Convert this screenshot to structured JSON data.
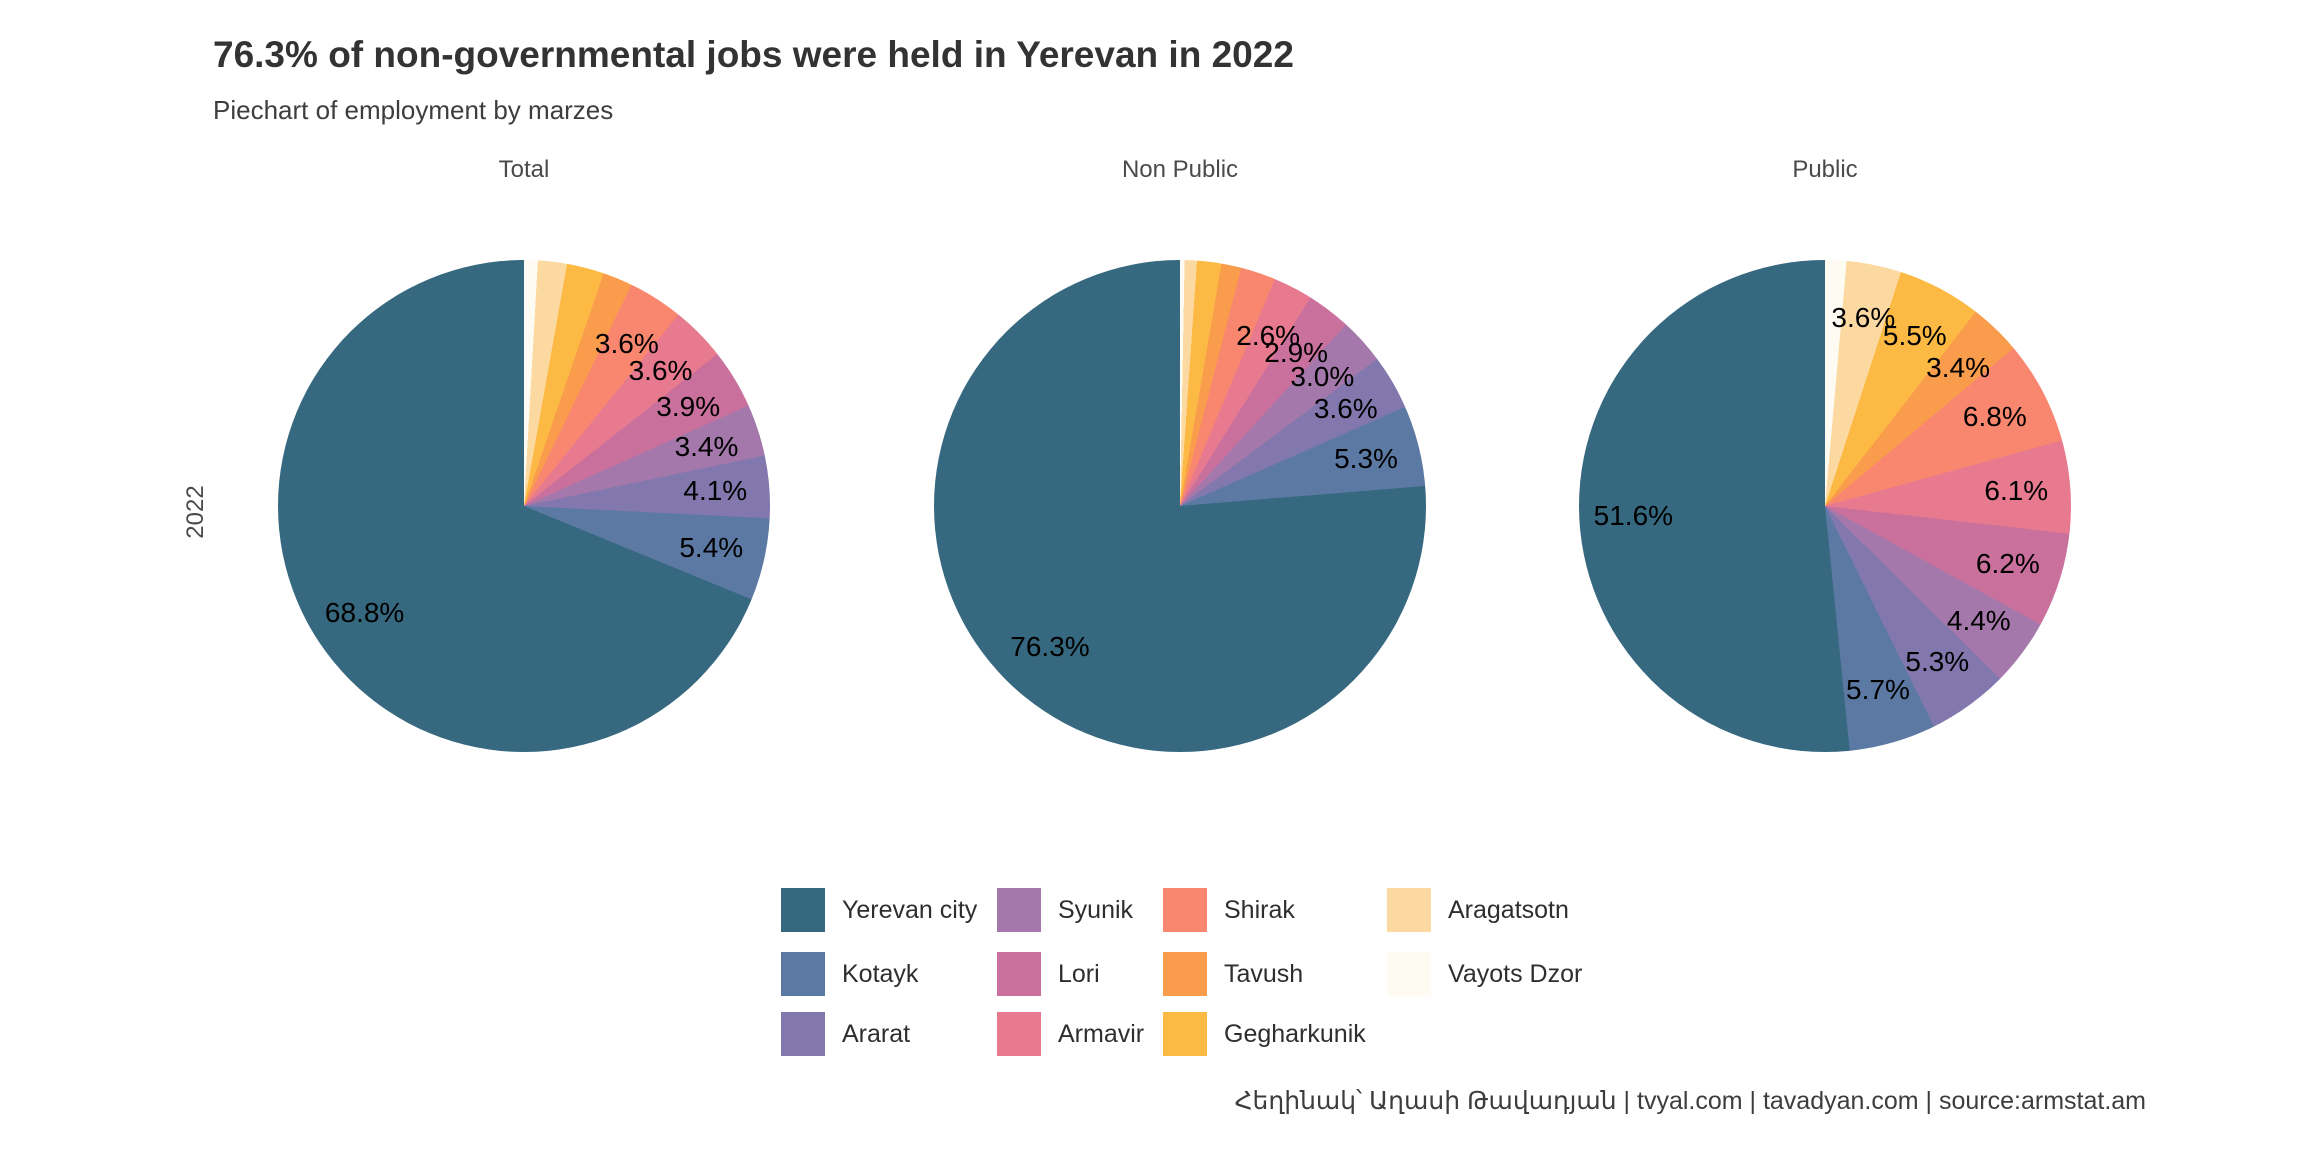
{
  "chart_data": {
    "type": "pie",
    "title": "76.3% of non-governmental jobs were held in Yerevan in 2022",
    "subtitle": "Piechart of employment by marzes",
    "row_label": "2022",
    "caption": "Հեղինակ՝ Աղասի Թավադյան   |   tvyal.com   |   tavadyan.com   |   source:armstat.am",
    "legend_position": "bottom",
    "labels_min_percent": 2.5,
    "label_radius_fraction": 0.78,
    "slice_order": "counterclockwise from 12 o'clock in category order (i.e. smallest categories clockwise from top)",
    "categories": [
      "Yerevan city",
      "Kotayk",
      "Ararat",
      "Syunik",
      "Lori",
      "Armavir",
      "Shirak",
      "Tavush",
      "Gegharkunik",
      "Aragatsotn",
      "Vayots Dzor"
    ],
    "colors": {
      "Yerevan city": "#36687f",
      "Kotayk": "#5b79a3",
      "Ararat": "#8378ae",
      "Syunik": "#a478ab",
      "Lori": "#c9709d",
      "Armavir": "#e87a8f",
      "Shirak": "#f9866f",
      "Tavush": "#f99d4d",
      "Gegharkunik": "#fcba45",
      "Aragatsotn": "#fcd9a1",
      "Vayots Dzor": "#fdfbf2"
    },
    "facets": [
      {
        "label": "Total",
        "values": {
          "Yerevan city": 68.8,
          "Kotayk": 5.4,
          "Ararat": 4.1,
          "Syunik": 3.4,
          "Lori": 3.9,
          "Armavir": 3.6,
          "Shirak": 3.6,
          "Tavush": 1.95,
          "Gegharkunik": 2.45,
          "Aragatsotn": 1.9,
          "Vayots Dzor": 0.9
        }
      },
      {
        "label": "Non Public",
        "values": {
          "Yerevan city": 76.3,
          "Kotayk": 5.3,
          "Ararat": 3.6,
          "Syunik": 3.0,
          "Lori": 2.9,
          "Armavir": 2.6,
          "Shirak": 2.3,
          "Tavush": 1.3,
          "Gegharkunik": 1.6,
          "Aragatsotn": 0.8,
          "Vayots Dzor": 0.3
        }
      },
      {
        "label": "Public",
        "values": {
          "Yerevan city": 51.6,
          "Kotayk": 5.7,
          "Ararat": 5.3,
          "Syunik": 4.4,
          "Lori": 6.2,
          "Armavir": 6.1,
          "Shirak": 6.8,
          "Tavush": 3.4,
          "Gegharkunik": 5.5,
          "Aragatsotn": 3.6,
          "Vayots Dzor": 1.4
        }
      }
    ],
    "note": "Slices below 2.5% carry no percentage label in the chart; those values are estimated from arc angles."
  }
}
